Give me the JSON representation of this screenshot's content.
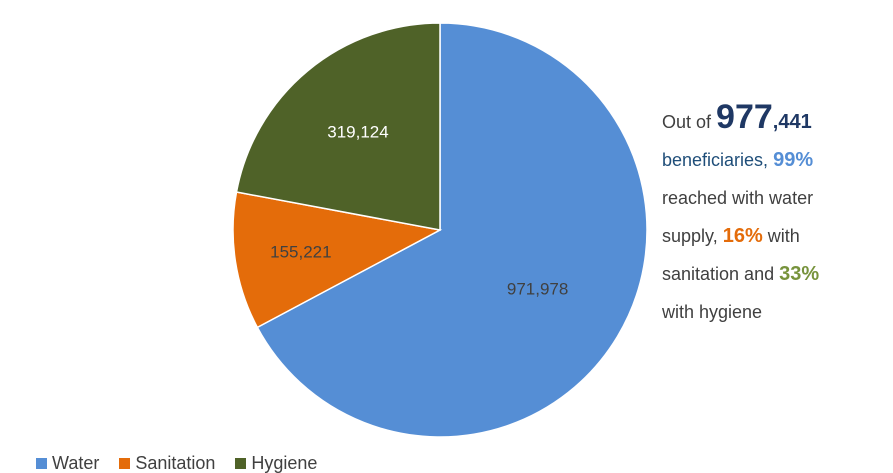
{
  "chart_data": {
    "type": "pie",
    "categories": [
      "Water",
      "Sanitation",
      "Hygiene"
    ],
    "values": [
      971978,
      155221,
      319124
    ],
    "data_labels": [
      "971,978",
      "155,221",
      "319,124"
    ],
    "colors": [
      "#558ed5",
      "#e46c0a",
      "#4f6228"
    ],
    "legend": "bottom-left"
  },
  "summary": {
    "prefix": "Out of ",
    "total_big": "977",
    "total_rest": ",441",
    "beneficiaries": "beneficiaries,",
    "water_pct": "99%",
    "water_text1": "reached with water",
    "water_text2": "supply,",
    "san_pct": "16%",
    "with1": "with",
    "san_text": "sanitation and",
    "hyg_pct": "33%",
    "hyg_text": "with hygiene",
    "water_pct_color": "#558ed5",
    "san_pct_color": "#e46c0a",
    "hyg_pct_color": "#77933c"
  }
}
